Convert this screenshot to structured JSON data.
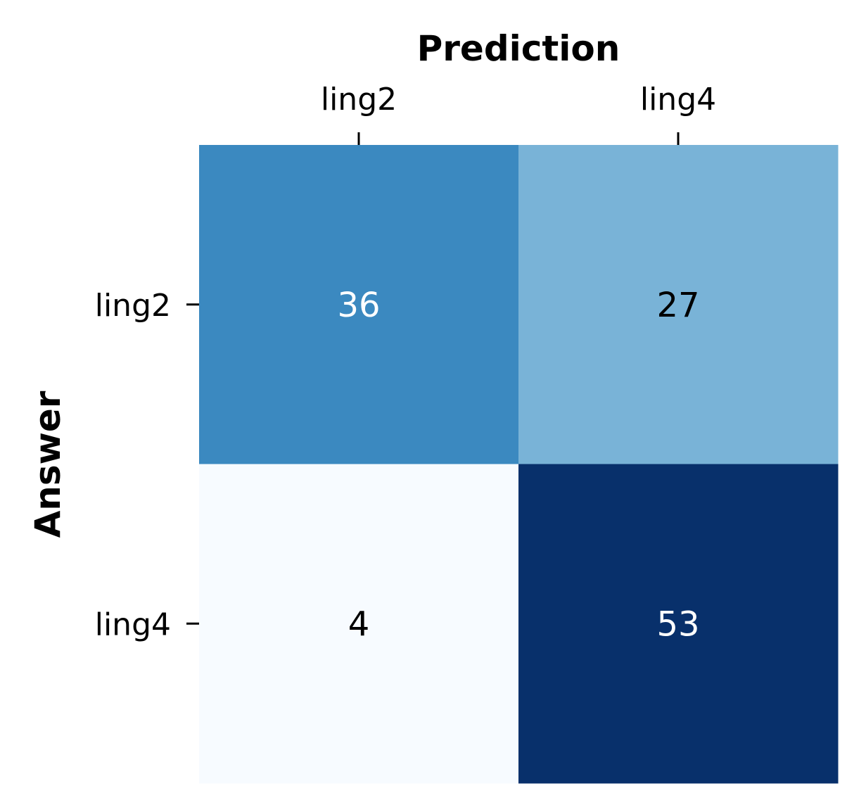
{
  "chart_data": {
    "type": "heatmap",
    "xlabel": "Prediction",
    "ylabel": "Answer",
    "x_categories": [
      "ling2",
      "ling4"
    ],
    "y_categories": [
      "ling2",
      "ling4"
    ],
    "values": [
      [
        36,
        27
      ],
      [
        4,
        53
      ]
    ],
    "colormap": "Blues",
    "vmin": 4,
    "vmax": 53,
    "cell_colors": [
      [
        "#3b89c0",
        "#79b3d7"
      ],
      [
        "#f7fbff",
        "#08306b"
      ]
    ],
    "annotation_colors": [
      [
        "#ffffff",
        "#000000"
      ],
      [
        "#000000",
        "#ffffff"
      ]
    ],
    "x_axis_position": "top",
    "colorbar": false,
    "grid": false
  }
}
